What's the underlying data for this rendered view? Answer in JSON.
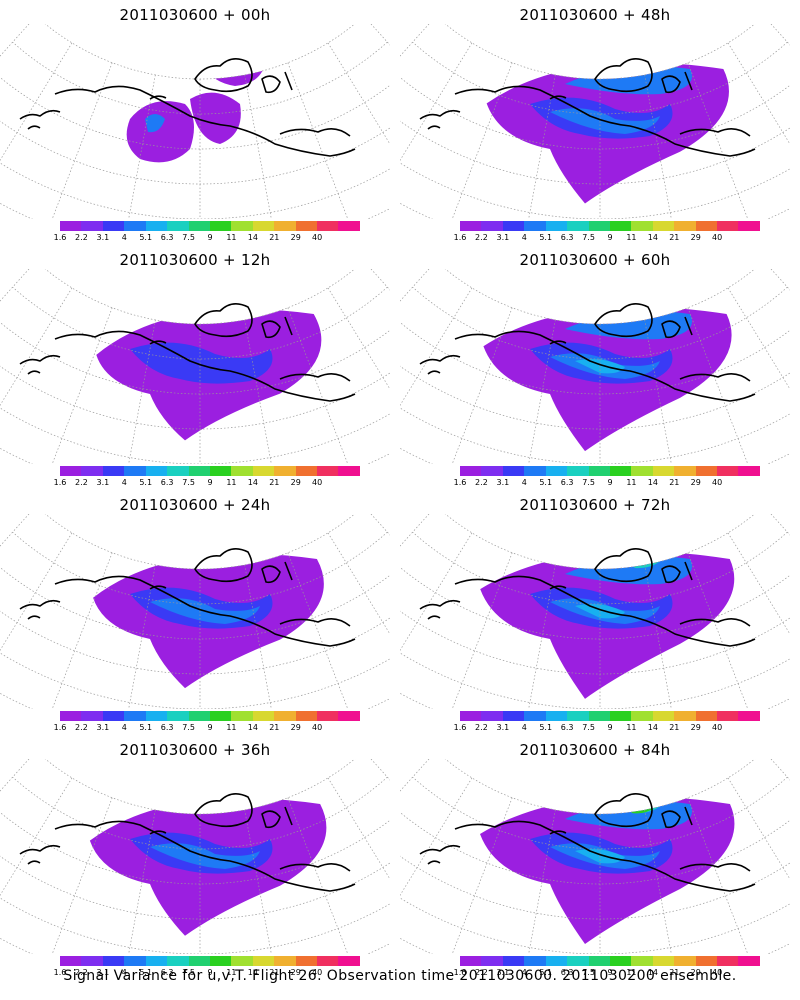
{
  "panels": [
    {
      "title": "2011030600 + 00h",
      "lead": 0
    },
    {
      "title": "2011030600 + 48h",
      "lead": 48
    },
    {
      "title": "2011030600 + 12h",
      "lead": 12
    },
    {
      "title": "2011030600 + 60h",
      "lead": 60
    },
    {
      "title": "2011030600 + 24h",
      "lead": 24
    },
    {
      "title": "2011030600 + 72h",
      "lead": 72
    },
    {
      "title": "2011030600 + 36h",
      "lead": 36
    },
    {
      "title": "2011030600 + 84h",
      "lead": 84
    }
  ],
  "colorbar": {
    "labels": [
      "1.6",
      "2.2",
      "3.1",
      "4",
      "5.1",
      "6.3",
      "7.5",
      "9",
      "11",
      "14",
      "21",
      "29",
      "40"
    ],
    "colors": [
      "#9b1fe0",
      "#7e2ef0",
      "#3a3af5",
      "#1e7af5",
      "#18b0f0",
      "#1ad0c0",
      "#20d070",
      "#2ad020",
      "#a0e030",
      "#d8d830",
      "#f0b030",
      "#f07030",
      "#f03060",
      "#f01090"
    ]
  },
  "caption": "Signal Variance for u,v,T. Flight 26. Observation time 2011030600. 2011030200 ensemble."
}
